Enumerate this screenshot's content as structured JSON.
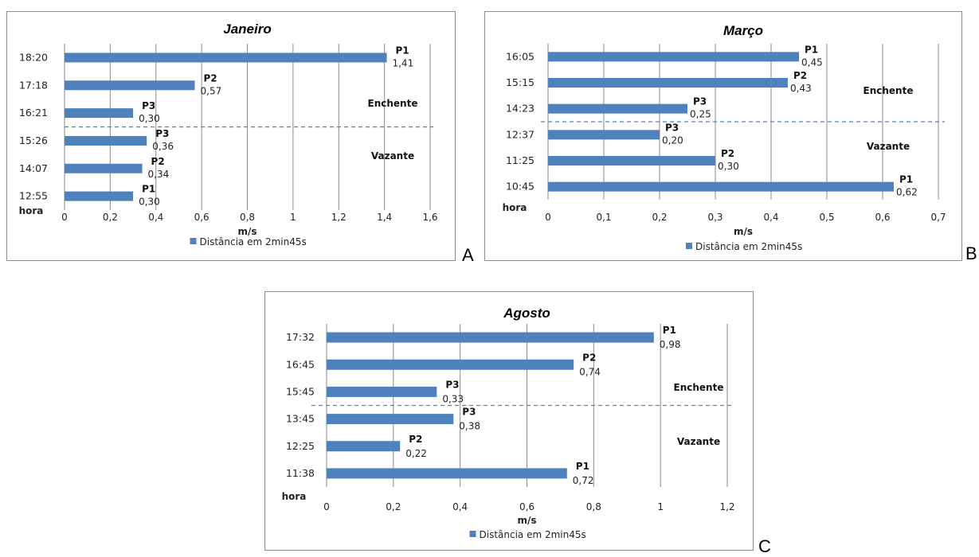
{
  "chart_data": [
    {
      "id": "A",
      "type": "bar",
      "orientation": "horizontal",
      "title": "Janeiro",
      "xlabel": "m/s",
      "ylabel": "hora",
      "xlim": [
        0,
        1.6
      ],
      "xticks": [
        "0",
        "0,2",
        "0,4",
        "0,6",
        "0,8",
        "1",
        "1,2",
        "1,4",
        "1,6"
      ],
      "categories": [
        "12:55",
        "14:07",
        "15:26",
        "16:21",
        "17:18",
        "18:20"
      ],
      "series": [
        {
          "name": "Distância em 2min45s",
          "values": [
            0.3,
            0.34,
            0.36,
            0.3,
            0.57,
            1.41
          ]
        }
      ],
      "point_labels": [
        "P1",
        "P2",
        "P3",
        "P3",
        "P2",
        "P1"
      ],
      "value_labels": [
        "0,30",
        "0,34",
        "0,36",
        "0,30",
        "0,57",
        "1,41"
      ],
      "regions": {
        "upper": "Enchente",
        "lower": "Vazante"
      },
      "grid": true,
      "legend_position": "bottom",
      "color": "#4f81bd"
    },
    {
      "id": "B",
      "type": "bar",
      "orientation": "horizontal",
      "title": "Março",
      "xlabel": "m/s",
      "ylabel": "hora",
      "xlim": [
        0,
        0.7
      ],
      "xticks": [
        "0",
        "0,1",
        "0,2",
        "0,3",
        "0,4",
        "0,5",
        "0,6",
        "0,7"
      ],
      "categories": [
        "10:45",
        "11:25",
        "12:37",
        "14:23",
        "15:15",
        "16:05"
      ],
      "series": [
        {
          "name": "Distância em 2min45s",
          "values": [
            0.62,
            0.3,
            0.2,
            0.25,
            0.43,
            0.45
          ]
        }
      ],
      "point_labels": [
        "P1",
        "P2",
        "P3",
        "P3",
        "P2",
        "P1"
      ],
      "value_labels": [
        "0,62",
        "0,30",
        "0,20",
        "0,25",
        "0,43",
        "0,45"
      ],
      "regions": {
        "upper": "Enchente",
        "lower": "Vazante"
      },
      "grid": true,
      "legend_position": "bottom",
      "color": "#4f81bd"
    },
    {
      "id": "C",
      "type": "bar",
      "orientation": "horizontal",
      "title": "Agosto",
      "xlabel": "m/s",
      "ylabel": "hora",
      "xlim": [
        0,
        1.2
      ],
      "xticks": [
        "0",
        "0,2",
        "0,4",
        "0,6",
        "0,8",
        "1",
        "1,2"
      ],
      "categories": [
        "11:38",
        "12:25",
        "13:45",
        "15:45",
        "16:45",
        "17:32"
      ],
      "series": [
        {
          "name": "Distância em 2min45s",
          "values": [
            0.72,
            0.22,
            0.38,
            0.33,
            0.74,
            0.98
          ]
        }
      ],
      "point_labels": [
        "P1",
        "P2",
        "P3",
        "P3",
        "P2",
        "P1"
      ],
      "value_labels": [
        "0,72",
        "0,22",
        "0,38",
        "0,33",
        "0,74",
        "0,98"
      ],
      "regions": {
        "upper": "Enchente",
        "lower": "Vazante"
      },
      "grid": true,
      "legend_position": "bottom",
      "color": "#4f81bd"
    }
  ],
  "panel_letters": {
    "A": "A",
    "B": "B",
    "C": "C"
  }
}
